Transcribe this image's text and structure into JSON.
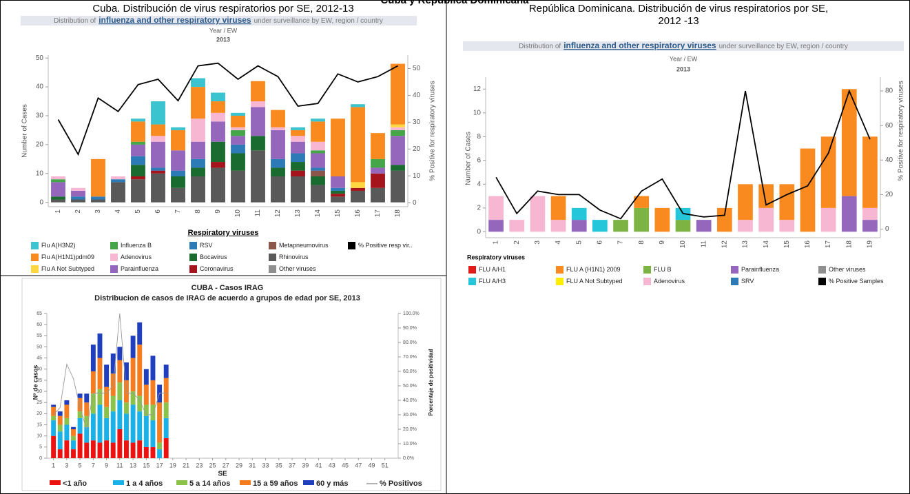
{
  "header": "Cuba y República Dominicana",
  "chart_data": [
    {
      "type": "bar",
      "title": "Cuba. Distribución de virus respiratorios por SE, 2012-13",
      "subtitle": [
        "Distribution of",
        "influenza and other respiratory viruses",
        "under surveillance by EW, region / country"
      ],
      "x_label": "Year / EW",
      "year": "2013",
      "y_label": "Number of Cases",
      "y2_label": "% Positive for respiratory viruses",
      "legend_title": "Respiratory viruses",
      "categories": [
        "1",
        "2",
        "3",
        "4",
        "5",
        "6",
        "7",
        "8",
        "9",
        "10",
        "11",
        "12",
        "13",
        "14",
        "15",
        "16",
        "17",
        "18"
      ],
      "ylim": [
        -1.5,
        51
      ],
      "yticks": [
        0,
        10,
        20,
        30,
        40,
        50
      ],
      "y2lim": [
        -1.5,
        55
      ],
      "y2ticks": [
        0,
        10,
        20,
        30,
        40,
        50
      ],
      "grid": false,
      "series": [
        {
          "name": "Flu A(H3N2)",
          "color": "#3cc3d0",
          "values": [
            0,
            0,
            0,
            0,
            1,
            8,
            1,
            3,
            3,
            1,
            0,
            0,
            1,
            1,
            0,
            1,
            0,
            0
          ]
        },
        {
          "name": "Influenza B",
          "color": "#44a648",
          "values": [
            1,
            0,
            0,
            0,
            1,
            0,
            0,
            0,
            0,
            2,
            0,
            0,
            0,
            1,
            0,
            0,
            3,
            2
          ]
        },
        {
          "name": "RSV",
          "color": "#2c7bb6",
          "values": [
            0,
            1,
            1,
            1,
            3,
            1,
            2,
            3,
            0,
            3,
            0,
            3,
            3,
            1,
            1,
            0,
            0,
            0
          ]
        },
        {
          "name": "Metapneumovirus",
          "color": "#8c564b",
          "values": [
            0,
            0,
            0,
            0,
            0,
            0,
            0,
            0,
            0,
            0,
            0,
            0,
            0,
            2,
            0,
            0,
            0,
            0
          ]
        },
        {
          "name": "% Positive resp vir..",
          "color": "#000000",
          "type": "line",
          "axis": "y2",
          "values": [
            31,
            18,
            39,
            34,
            44,
            46,
            38,
            51,
            52,
            46,
            51,
            47,
            36,
            37,
            48,
            45,
            47,
            51
          ]
        },
        {
          "name": "Flu A(H1N1)pdm09",
          "color": "#f98a1f",
          "values": [
            0,
            0,
            13,
            0,
            7,
            4,
            7,
            11,
            4,
            4,
            7,
            6,
            2,
            7,
            20,
            26,
            9,
            21
          ]
        },
        {
          "name": "Adenovirus",
          "color": "#f7b6d2",
          "values": [
            1,
            1,
            0,
            1,
            0,
            2,
            0,
            8,
            3,
            1,
            2,
            1,
            2,
            3,
            0,
            0,
            0,
            1
          ]
        },
        {
          "name": "Bocavirus",
          "color": "#1a6b2f",
          "values": [
            1,
            0,
            0,
            0,
            4,
            0,
            4,
            3,
            7,
            6,
            5,
            3,
            3,
            3,
            1,
            0,
            0,
            2
          ]
        },
        {
          "name": "Rhinovirus",
          "color": "#595959",
          "values": [
            1,
            1,
            1,
            7,
            8,
            10,
            5,
            9,
            12,
            11,
            18,
            9,
            9,
            6,
            2,
            4,
            5,
            11
          ]
        },
        {
          "name": "Flu A Not Subtyped",
          "color": "#ffd740",
          "values": [
            0,
            0,
            0,
            0,
            0,
            0,
            0,
            0,
            0,
            0,
            0,
            0,
            0,
            0,
            0,
            2,
            0,
            1
          ]
        },
        {
          "name": "Parainfluenza",
          "color": "#9467bd",
          "values": [
            5,
            2,
            0,
            0,
            4,
            9,
            7,
            6,
            7,
            3,
            10,
            10,
            4,
            5,
            4,
            0,
            2,
            10
          ]
        },
        {
          "name": "Coronavirus",
          "color": "#a5141c",
          "values": [
            0,
            0,
            0,
            0,
            1,
            1,
            0,
            0,
            2,
            0,
            0,
            0,
            2,
            0,
            1,
            1,
            5,
            0
          ]
        },
        {
          "name": "Other viruses",
          "color": "#8f8f8f",
          "values": [
            0,
            0,
            0,
            0,
            0,
            0,
            0,
            0,
            0,
            0,
            0,
            0,
            0,
            0,
            0,
            0,
            0,
            0
          ]
        }
      ]
    },
    {
      "type": "bar",
      "title": [
        "República Dominicana. Distribución de virus respiratorios por SE,",
        "2012 -13"
      ],
      "subtitle": [
        "Distribution of",
        "influenza and other respiratory viruses",
        "under surveillance by EW, region / country"
      ],
      "x_label": "Year / EW",
      "year": "2013",
      "y_label": "Number of Cases",
      "y2_label": "% Positive for respiratory viruses",
      "legend_title": "Respiratory viruses",
      "categories": [
        "1",
        "2",
        "3",
        "4",
        "5",
        "6",
        "7",
        "8",
        "9",
        "10",
        "11",
        "12",
        "13",
        "14",
        "15",
        "16",
        "17",
        "18",
        "19"
      ],
      "ylim": [
        -0.5,
        13
      ],
      "yticks": [
        0,
        2,
        4,
        6,
        8,
        10,
        12
      ],
      "y2lim": [
        -5,
        88
      ],
      "y2ticks": [
        0,
        20,
        40,
        60,
        80
      ],
      "grid": false,
      "series": [
        {
          "name": "FLU A/H1",
          "color": "#e31a1c",
          "values": [
            0,
            0,
            0,
            0,
            0,
            0,
            0,
            0,
            0,
            0,
            0,
            0,
            0,
            0,
            0,
            0,
            0,
            0,
            0
          ]
        },
        {
          "name": "FLU A (H1N1) 2009",
          "color": "#f98a1f",
          "values": [
            0,
            0,
            0,
            2,
            0,
            0,
            0,
            1,
            2,
            0,
            0,
            2,
            3,
            2,
            3,
            7,
            6,
            9,
            6
          ]
        },
        {
          "name": "FLU B",
          "color": "#7cb342",
          "values": [
            0,
            0,
            0,
            0,
            0,
            0,
            1,
            2,
            0,
            1,
            0,
            0,
            0,
            0,
            0,
            0,
            0,
            0,
            0
          ]
        },
        {
          "name": "Parainfluenza",
          "color": "#9467bd",
          "values": [
            1,
            0,
            0,
            0,
            1,
            0,
            0,
            0,
            0,
            0,
            1,
            0,
            0,
            0,
            0,
            0,
            0,
            3,
            1
          ]
        },
        {
          "name": "Other viruses",
          "color": "#8f8f8f",
          "values": [
            0,
            0,
            0,
            0,
            0,
            0,
            0,
            0,
            0,
            0,
            0,
            0,
            0,
            0,
            0,
            0,
            0,
            0,
            0
          ]
        },
        {
          "name": "FLU A/H3",
          "color": "#26c6da",
          "values": [
            0,
            0,
            0,
            0,
            1,
            1,
            0,
            0,
            0,
            1,
            0,
            0,
            0,
            0,
            0,
            0,
            0,
            0,
            0
          ]
        },
        {
          "name": "FLU A Not Subtyped",
          "color": "#ffee00",
          "values": [
            0,
            0,
            0,
            0,
            0,
            0,
            0,
            0,
            0,
            0,
            0,
            0,
            0,
            0,
            0,
            0,
            0,
            0,
            0
          ]
        },
        {
          "name": "Adenovirus",
          "color": "#f7b6d2",
          "values": [
            2,
            1,
            3,
            1,
            0,
            0,
            0,
            0,
            0,
            0,
            0,
            0,
            1,
            2,
            1,
            0,
            2,
            0,
            1
          ]
        },
        {
          "name": "SRV",
          "color": "#2c7bb6",
          "values": [
            0,
            0,
            0,
            0,
            0,
            0,
            0,
            0,
            0,
            0,
            0,
            0,
            0,
            0,
            0,
            0,
            0,
            0,
            0
          ]
        },
        {
          "name": "% Positive Samples",
          "color": "#000000",
          "type": "line",
          "axis": "y2",
          "values": [
            30,
            9,
            22,
            20,
            20,
            11,
            6,
            22,
            29,
            9,
            7,
            8,
            80,
            14,
            20,
            25,
            44,
            80,
            52
          ]
        }
      ]
    },
    {
      "type": "bar",
      "title": [
        "CUBA - Casos IRAG",
        "Distribucion de casos de IRAG de acuerdo a grupos de edad por SE, 2013"
      ],
      "x_label": "SE",
      "y_label": "Nº de casos",
      "y2_label": "Porcentaje de positividad",
      "x": [
        1,
        2,
        3,
        4,
        5,
        6,
        7,
        8,
        9,
        10,
        11,
        12,
        13,
        14,
        15,
        16,
        17,
        18
      ],
      "xlim": [
        0,
        53
      ],
      "xticks": [
        1,
        3,
        5,
        7,
        9,
        11,
        13,
        15,
        17,
        19,
        21,
        23,
        25,
        27,
        29,
        31,
        33,
        35,
        37,
        39,
        41,
        43,
        45,
        47,
        49,
        51
      ],
      "ylim": [
        0,
        65
      ],
      "yticks": [
        0,
        5,
        10,
        15,
        20,
        25,
        30,
        35,
        40,
        45,
        50,
        55,
        60,
        65
      ],
      "y2lim": [
        0,
        100
      ],
      "y2ticks": [
        {
          "value": 0,
          "label": "0.0%"
        },
        {
          "value": 10,
          "label": "10.0%"
        },
        {
          "value": 20,
          "label": "20.0%"
        },
        {
          "value": 30,
          "label": "30.0%"
        },
        {
          "value": 40,
          "label": "40.0%"
        },
        {
          "value": 50,
          "label": "50.0%"
        },
        {
          "value": 60,
          "label": "60.0%"
        },
        {
          "value": 70,
          "label": "70.0%"
        },
        {
          "value": 80,
          "label": "80.0%"
        },
        {
          "value": 90,
          "label": "90.0%"
        },
        {
          "value": 100,
          "label": "100.0%"
        }
      ],
      "grid": false,
      "series": [
        {
          "name": "<1 año",
          "color": "#ee1111",
          "values": [
            10,
            4,
            8,
            4,
            11,
            7,
            8,
            7,
            8,
            7,
            13,
            8,
            7,
            8,
            5,
            5,
            0,
            9
          ]
        },
        {
          "name": "1 a 4 años",
          "color": "#1ab0e8",
          "values": [
            7,
            8,
            7,
            4,
            7,
            7,
            12,
            17,
            10,
            14,
            13,
            12,
            17,
            13,
            14,
            12,
            4,
            9
          ]
        },
        {
          "name": "5 a 14 años",
          "color": "#8bc34a",
          "values": [
            2,
            3,
            3,
            2,
            3,
            5,
            9,
            7,
            5,
            7,
            8,
            5,
            6,
            7,
            5,
            7,
            3,
            7
          ]
        },
        {
          "name": "15 a 59 años",
          "color": "#f57c1f",
          "values": [
            4,
            4,
            6,
            3,
            6,
            6,
            10,
            14,
            9,
            10,
            10,
            10,
            15,
            23,
            9,
            11,
            18,
            11
          ]
        },
        {
          "name": "60 y más",
          "color": "#1f3fbf",
          "values": [
            1,
            2,
            2,
            1,
            2,
            4,
            12,
            11,
            10,
            9,
            6,
            8,
            10,
            10,
            7,
            11,
            8,
            6
          ]
        },
        {
          "name": "% Positivos",
          "color": "#999999",
          "type": "line",
          "axis": "y2",
          "values": [
            30,
            35,
            65,
            55,
            35,
            20,
            45,
            45,
            45,
            50,
            100,
            45,
            45,
            40,
            30,
            30,
            45,
            45
          ]
        }
      ]
    }
  ]
}
